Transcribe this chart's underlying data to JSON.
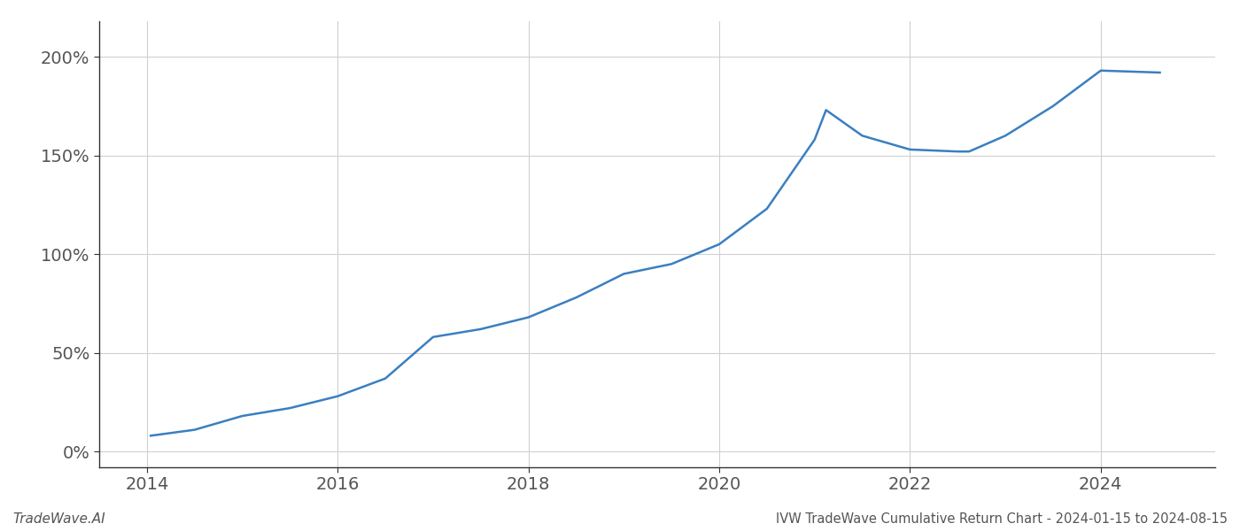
{
  "title": "IVW TradeWave Cumulative Return Chart - 2024-01-15 to 2024-08-15",
  "watermark": "TradeWave.AI",
  "line_color": "#3a7fc1",
  "line_width": 1.8,
  "background_color": "#ffffff",
  "grid_color": "#d0d0d0",
  "x_years": [
    2014.04,
    2014.5,
    2015.0,
    2015.5,
    2016.0,
    2016.5,
    2017.0,
    2017.5,
    2018.0,
    2018.5,
    2019.0,
    2019.5,
    2020.0,
    2020.5,
    2021.0,
    2021.12,
    2021.5,
    2022.0,
    2022.5,
    2022.62,
    2023.0,
    2023.5,
    2024.0,
    2024.62
  ],
  "y_values": [
    8,
    11,
    18,
    22,
    28,
    37,
    58,
    62,
    68,
    78,
    90,
    95,
    105,
    123,
    158,
    173,
    160,
    153,
    152,
    152,
    160,
    175,
    193,
    192
  ],
  "yticks": [
    0,
    50,
    100,
    150,
    200
  ],
  "ytick_labels": [
    "0%",
    "50%",
    "100%",
    "150%",
    "200%"
  ],
  "xticks": [
    2014,
    2016,
    2018,
    2020,
    2022,
    2024
  ],
  "xlim": [
    2013.5,
    2025.2
  ],
  "ylim": [
    -8,
    218
  ],
  "title_fontsize": 10.5,
  "tick_fontsize": 14,
  "watermark_fontsize": 11
}
